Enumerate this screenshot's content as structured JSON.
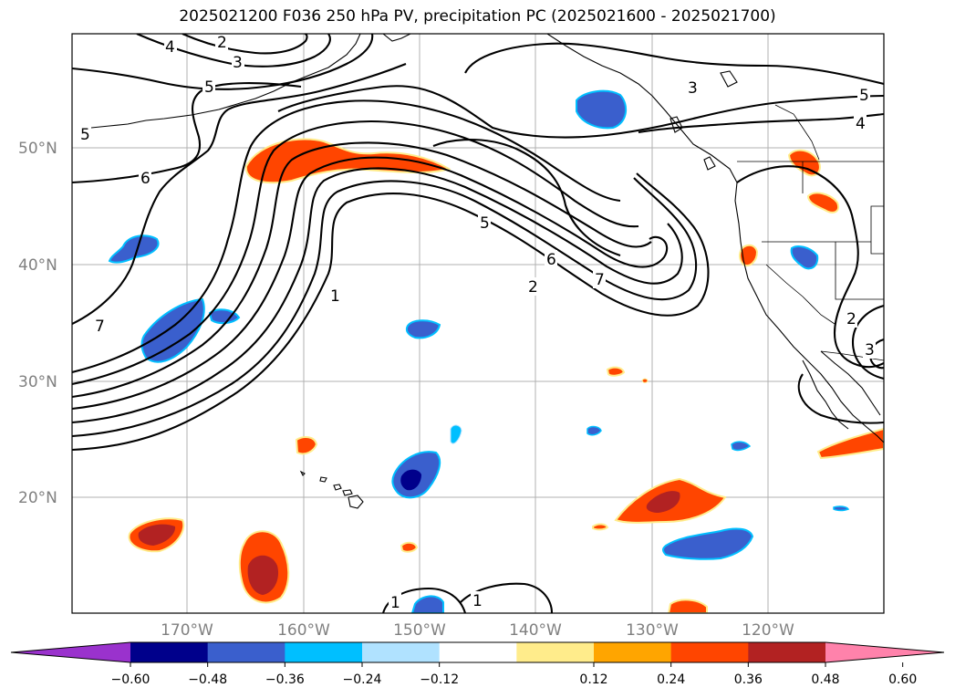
{
  "title": "2025021200 F036 250 hPa PV, precipitation PC (2025021600 - 2025021700)",
  "map": {
    "lat_labels": [
      "50°N",
      "40°N",
      "30°N",
      "20°N"
    ],
    "lon_labels": [
      "170°W",
      "160°W",
      "150°W",
      "140°W",
      "130°W",
      "120°W"
    ],
    "contour_labels": [
      {
        "id": "c4a",
        "text": "4"
      },
      {
        "id": "c2a",
        "text": "2"
      },
      {
        "id": "c3a",
        "text": "3"
      },
      {
        "id": "c5a",
        "text": "5"
      },
      {
        "id": "c5b",
        "text": "5"
      },
      {
        "id": "c6a",
        "text": "6"
      },
      {
        "id": "c7a",
        "text": "7"
      },
      {
        "id": "c1a",
        "text": "1"
      },
      {
        "id": "c5c",
        "text": "5"
      },
      {
        "id": "c6b",
        "text": "6"
      },
      {
        "id": "c2b",
        "text": "2"
      },
      {
        "id": "c7b",
        "text": "7"
      },
      {
        "id": "c3b",
        "text": "3"
      },
      {
        "id": "c5d",
        "text": "5"
      },
      {
        "id": "c4b",
        "text": "4"
      },
      {
        "id": "c2c",
        "text": "2"
      },
      {
        "id": "c3c",
        "text": "3"
      },
      {
        "id": "c1b",
        "text": "1"
      },
      {
        "id": "c1c",
        "text": "1"
      }
    ]
  },
  "colorbar": {
    "ticks": [
      "−0.60",
      "−0.48",
      "−0.36",
      "−0.24",
      "−0.12",
      "0.12",
      "0.24",
      "0.36",
      "0.48",
      "0.60"
    ],
    "colors": [
      "#9a32cd",
      "#00008b",
      "#3a5fcd",
      "#00bfff",
      "#b0e2ff",
      "#ffffff",
      "#ffec8b",
      "#ffa500",
      "#ff4500",
      "#b22222",
      "#ff82ab"
    ]
  }
}
